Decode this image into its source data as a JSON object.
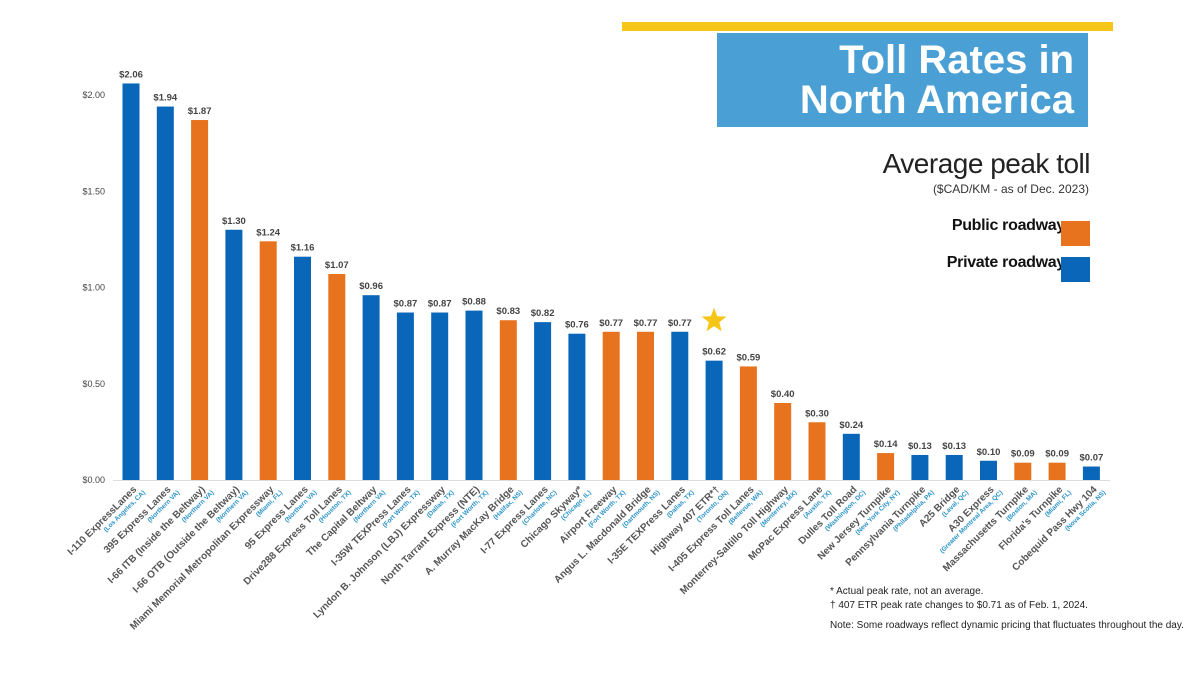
{
  "title": "Toll Rates in North America",
  "title_lines": [
    "Toll Rates in",
    "North America"
  ],
  "subtitle": "Average peak toll",
  "unit": "($CAD/KM - as of Dec. 2023)",
  "legend": [
    {
      "label": "Public roadway",
      "color": "#e8731e"
    },
    {
      "label": "Private roadway",
      "color": "#0a66b8"
    }
  ],
  "notes": [
    "* Actual peak rate, not an average.",
    "† 407 ETR peak rate changes to $0.71 as of Feb. 1, 2024.",
    "Note: Some roadways reflect dynamic pricing that fluctuates throughout the day."
  ],
  "chart_data": {
    "type": "bar",
    "ylim": [
      0,
      2.1
    ],
    "yticks": [
      "$0.00",
      "$0.50",
      "$1.00",
      "$1.50",
      "$2.00"
    ],
    "ytick_values": [
      0,
      0.5,
      1,
      1.5,
      2
    ],
    "grid": false,
    "legend_position": "right",
    "categories": [
      "I-110 ExpressLanes",
      "395 Express Lanes",
      "I-66 ITB (Inside the Beltway)",
      "I-66 OTB (Outside the Beltway)",
      "Miami Memorial Metropolitan Expressway",
      "95 Express Lanes",
      "Drive288 Express Toll Lanes",
      "The Capital Beltway",
      "I-35W TEXPress Lanes",
      "Lyndon B. Johnson (LBJ) Expressway",
      "North Tarrant Express (NTE)",
      "A. Murray MacKay Bridge",
      "I-77 Express Lanes",
      "Chicago Skyway*",
      "Airport Freeway",
      "Angus L. Macdonald Bridge",
      "I-35E TEXPress Lanes",
      "Highway 407 ETR*†",
      "I-405 Express Toll Lanes",
      "Monterrey-Saltillo Toll Highway",
      "MoPac Express Lane",
      "Dulles Toll Road",
      "New Jersey Turnpike",
      "Pennsylvania Turnpike",
      "A25 Bridge",
      "A30 Express",
      "Massachusetts Turnpike",
      "Florida's Turnpike",
      "Cobequid Pass Hwy 104"
    ],
    "locations": [
      "(Los Angeles, CA)",
      "(Northern VA)",
      "(Northern VA)",
      "(Northern VA)",
      "(Miami, FL)",
      "(Northern VA)",
      "(Houston, TX)",
      "(Northern VA)",
      "(Fort Worth, TX)",
      "(Dallas, TX)",
      "(Fort Worth, TX)",
      "(Halifax, NS)",
      "(Charlotte, NC)",
      "(Chicago, IL)",
      "(Fort Worth, TX)",
      "(Dartmouth, NS)",
      "(Dallas, TX)",
      "(Toronto, ON)",
      "(Bellevue, WA)",
      "(Monterrey, MX)",
      "(Austin, TX)",
      "(Washington, DC)",
      "(New York City, NY)",
      "(Philadelphia, PA)",
      "(Laval, QC)",
      "(Greater Montreal Area, QC)",
      "(Boston, MA)",
      "(Miami, FL)",
      "(Nova Scotia, NS)"
    ],
    "values": [
      2.06,
      1.94,
      1.87,
      1.3,
      1.24,
      1.16,
      1.07,
      0.96,
      0.87,
      0.87,
      0.88,
      0.83,
      0.82,
      0.76,
      0.77,
      0.77,
      0.77,
      0.62,
      0.59,
      0.4,
      0.3,
      0.24,
      0.14,
      0.13,
      0.13,
      0.1,
      0.09,
      0.09,
      0.07
    ],
    "data_labels": [
      "$2.06",
      "$1.94",
      "$1.87",
      "$1.30",
      "$1.24",
      "$1.16",
      "$1.07",
      "$0.96",
      "$0.87",
      "$0.87",
      "$0.88",
      "$0.83",
      "$0.82",
      "$0.76",
      "$0.77",
      "$0.77",
      "$0.77",
      "$0.62",
      "$0.59",
      "$0.40",
      "$0.30",
      "$0.24",
      "$0.14",
      "$0.13",
      "$0.13",
      "$0.10",
      "$0.09",
      "$0.09",
      "$0.07"
    ],
    "ownership": [
      "Private",
      "Private",
      "Public",
      "Private",
      "Public",
      "Private",
      "Public",
      "Private",
      "Private",
      "Private",
      "Private",
      "Public",
      "Private",
      "Private",
      "Public",
      "Public",
      "Private",
      "Private",
      "Public",
      "Public",
      "Public",
      "Private",
      "Public",
      "Private",
      "Private",
      "Private",
      "Public",
      "Public",
      "Private"
    ],
    "highlight": {
      "category": "Highway 407 ETR*†",
      "icon": "star-icon",
      "color": "#f5c518"
    }
  }
}
